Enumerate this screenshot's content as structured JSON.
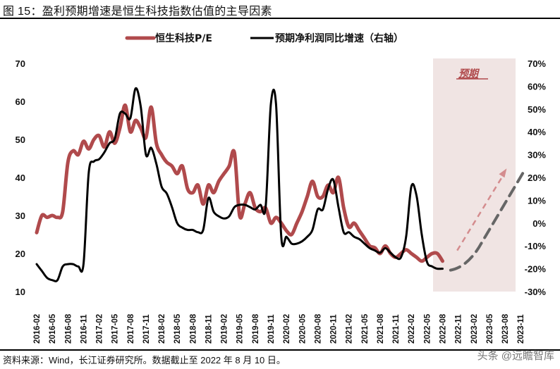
{
  "title": "图 15：盈利预期增速是恒生科技指数估值的主导因素",
  "source": "资料来源：Wind，长江证券研究所。数据截止至 2022 年 8 月 10 日。",
  "watermark": "头条 @远瞻智库",
  "colors": {
    "pe_line": "#b04a4c",
    "growth_line": "#000000",
    "forecast_shade": "#f0e4e3",
    "forecast_pe_arrow": "#d48c8e",
    "forecast_growth_dash": "#666666"
  },
  "chart_data": {
    "type": "line",
    "title": "盈利预期增速是恒生科技指数估值的主导因素",
    "xlabel": "",
    "ylabel_left": "恒生科技P/E",
    "ylabel_right": "预期净利润同比增速（右轴）",
    "ylim_left": [
      10,
      70
    ],
    "ylim_right": [
      -30,
      70
    ],
    "yticks_left": [
      "70",
      "60",
      "50",
      "40",
      "30",
      "20",
      "10"
    ],
    "yticks_right": [
      "70%",
      "60%",
      "50%",
      "40%",
      "30%",
      "20%",
      "10%",
      "0%",
      "-10%",
      "-20%",
      "-30%"
    ],
    "xticks": [
      "2016-02",
      "2016-05",
      "2016-08",
      "2016-11",
      "2017-02",
      "2017-05",
      "2017-08",
      "2017-11",
      "2018-02",
      "2018-05",
      "2018-08",
      "2018-11",
      "2019-02",
      "2019-05",
      "2019-08",
      "2019-11",
      "2020-02",
      "2020-05",
      "2020-08",
      "2020-11",
      "2021-02",
      "2021-05",
      "2021-08",
      "2021-11",
      "2022-02",
      "2022-05",
      "2022-08",
      "2022-11",
      "2023-02",
      "2023-05",
      "2023-08",
      "2023-11"
    ],
    "grid": false,
    "legend_position": "top",
    "legend": [
      "恒生科技P/E",
      "预期净利润同比增速（右轴）"
    ],
    "forecast_region": {
      "label": "预期",
      "from": "2022-09",
      "to": "2023-12"
    },
    "series": [
      {
        "name": "恒生科技P/E",
        "axis": "left",
        "x": [
          "2016-02",
          "2016-03",
          "2016-04",
          "2016-05",
          "2016-06",
          "2016-07",
          "2016-08",
          "2016-09",
          "2016-10",
          "2016-11",
          "2016-12",
          "2017-01",
          "2017-02",
          "2017-03",
          "2017-04",
          "2017-05",
          "2017-06",
          "2017-07",
          "2017-08",
          "2017-09",
          "2017-10",
          "2017-11",
          "2017-12",
          "2018-01",
          "2018-02",
          "2018-03",
          "2018-04",
          "2018-05",
          "2018-06",
          "2018-07",
          "2018-08",
          "2018-09",
          "2018-10",
          "2018-11",
          "2018-12",
          "2019-01",
          "2019-02",
          "2019-03",
          "2019-04",
          "2019-05",
          "2019-06",
          "2019-07",
          "2019-08",
          "2019-09",
          "2019-10",
          "2019-11",
          "2019-12",
          "2020-01",
          "2020-02",
          "2020-03",
          "2020-04",
          "2020-05",
          "2020-06",
          "2020-07",
          "2020-08",
          "2020-09",
          "2020-10",
          "2020-11",
          "2020-12",
          "2021-01",
          "2021-02",
          "2021-03",
          "2021-04",
          "2021-05",
          "2021-06",
          "2021-07",
          "2021-08",
          "2021-09",
          "2021-10",
          "2021-11",
          "2021-12",
          "2022-01",
          "2022-02",
          "2022-03",
          "2022-04",
          "2022-05",
          "2022-06",
          "2022-07",
          "2022-08"
        ],
        "values": [
          25.5,
          30,
          29.5,
          30,
          29.5,
          31,
          44,
          47,
          46,
          49.5,
          47.5,
          50,
          51,
          48,
          52,
          49,
          53,
          59,
          52,
          55,
          53,
          50.5,
          58.5,
          49,
          46,
          44,
          43,
          41,
          43,
          37,
          36,
          38,
          33,
          38,
          36,
          39,
          41,
          43,
          46.5,
          30,
          33,
          36,
          32,
          31,
          32,
          28,
          29.5,
          28,
          26,
          25,
          28,
          31,
          35,
          39,
          35,
          35,
          38,
          36,
          40,
          32,
          27,
          28,
          26,
          24,
          22,
          21.5,
          20,
          22,
          20,
          19,
          20,
          21,
          20,
          19,
          18,
          19,
          20,
          20,
          18
        ]
      },
      {
        "name": "预期净利润同比增速（右轴）",
        "axis": "right",
        "x": [
          "2016-02",
          "2016-03",
          "2016-04",
          "2016-05",
          "2016-06",
          "2016-07",
          "2016-08",
          "2016-09",
          "2016-10",
          "2016-11",
          "2016-12",
          "2017-01",
          "2017-02",
          "2017-03",
          "2017-04",
          "2017-05",
          "2017-06",
          "2017-07",
          "2017-08",
          "2017-09",
          "2017-10",
          "2017-11",
          "2017-12",
          "2018-01",
          "2018-02",
          "2018-03",
          "2018-04",
          "2018-05",
          "2018-06",
          "2018-07",
          "2018-08",
          "2018-09",
          "2018-10",
          "2018-11",
          "2018-12",
          "2019-01",
          "2019-02",
          "2019-03",
          "2019-04",
          "2019-05",
          "2019-06",
          "2019-07",
          "2019-08",
          "2019-09",
          "2019-10",
          "2019-11",
          "2019-12",
          "2020-01",
          "2020-02",
          "2020-03",
          "2020-04",
          "2020-05",
          "2020-06",
          "2020-07",
          "2020-08",
          "2020-09",
          "2020-10",
          "2020-11",
          "2020-12",
          "2021-01",
          "2021-02",
          "2021-03",
          "2021-04",
          "2021-05",
          "2021-06",
          "2021-07",
          "2021-08",
          "2021-09",
          "2021-10",
          "2021-11",
          "2021-12",
          "2022-01",
          "2022-02",
          "2022-03",
          "2022-04",
          "2022-05",
          "2022-06",
          "2022-07",
          "2022-08"
        ],
        "values": [
          -18,
          -21,
          -24,
          -25,
          -25,
          -19,
          -18,
          -18,
          -19,
          -18,
          22,
          27,
          28,
          31,
          35,
          37,
          48,
          48,
          46,
          59,
          51,
          30,
          33,
          26,
          16,
          13,
          7,
          0,
          -2,
          -3,
          -3,
          -4,
          -3,
          11,
          5,
          3,
          2,
          3,
          7,
          8,
          8,
          7,
          6,
          8,
          7,
          52,
          52,
          -6,
          -6,
          -9,
          -9,
          -8,
          -6,
          -3,
          6,
          6,
          15,
          19,
          7,
          -4,
          -4,
          -6,
          -7,
          -9,
          -11,
          -12,
          -13,
          -11,
          -13,
          -15,
          -15,
          -6,
          16,
          12,
          -5,
          -17,
          -19,
          -20,
          -20
        ]
      }
    ],
    "forecast_series": [
      {
        "name": "恒生科技P/E预期",
        "style": "dashed-arrow",
        "from": {
          "x": "2022-10",
          "y": -12
        },
        "to": {
          "x": "2023-09",
          "y": 23
        },
        "axis": "right"
      },
      {
        "name": "预期净利润同比增速预期",
        "style": "dashed",
        "from": {
          "x": "2022-09",
          "y": -20
        },
        "to": {
          "x": "2023-12",
          "y": 22
        },
        "axis": "right"
      }
    ]
  }
}
